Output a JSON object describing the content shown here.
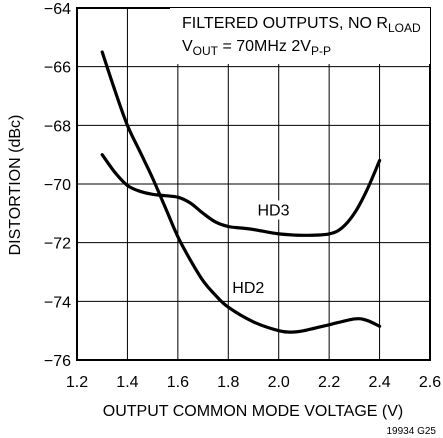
{
  "chart_data": {
    "type": "line",
    "xlabel": "OUTPUT COMMON MODE VOLTAGE (V)",
    "ylabel": "DISTORTION (dBc)",
    "xlim": [
      1.2,
      2.6
    ],
    "ylim": [
      -76,
      -64
    ],
    "xticks": [
      "1.2",
      "1.4",
      "1.6",
      "1.8",
      "2.0",
      "2.2",
      "2.4",
      "2.6"
    ],
    "yticks": [
      "−64",
      "−66",
      "−68",
      "−70",
      "−72",
      "−74",
      "−76"
    ],
    "grid": true,
    "annotation": {
      "line1": "FILTERED OUTPUTS, NO R",
      "line1_sub": "LOAD",
      "line2_a": "V",
      "line2_sub": "OUT",
      "line2_b": " = 70MHz 2V",
      "line2_sub2": "P-P"
    },
    "figure_id": "19934 G25",
    "series": [
      {
        "name": "HD3",
        "x": [
          1.3,
          1.35,
          1.4,
          1.45,
          1.5,
          1.55,
          1.6,
          1.65,
          1.7,
          1.75,
          1.8,
          1.85,
          1.9,
          2.0,
          2.1,
          2.2,
          2.25,
          2.3,
          2.35,
          2.4
        ],
        "y": [
          -69.0,
          -69.6,
          -70.05,
          -70.25,
          -70.35,
          -70.4,
          -70.45,
          -70.65,
          -71.0,
          -71.3,
          -71.45,
          -71.5,
          -71.55,
          -71.7,
          -71.75,
          -71.7,
          -71.5,
          -71.0,
          -70.2,
          -69.2
        ]
      },
      {
        "name": "HD2",
        "x": [
          1.3,
          1.35,
          1.4,
          1.45,
          1.5,
          1.55,
          1.6,
          1.65,
          1.7,
          1.75,
          1.8,
          1.9,
          2.0,
          2.05,
          2.1,
          2.2,
          2.3,
          2.35,
          2.4
        ],
        "y": [
          -65.5,
          -66.8,
          -68.0,
          -68.9,
          -69.8,
          -70.8,
          -71.8,
          -72.6,
          -73.3,
          -73.8,
          -74.2,
          -74.7,
          -75.0,
          -75.05,
          -75.0,
          -74.8,
          -74.6,
          -74.65,
          -74.85
        ]
      }
    ]
  }
}
